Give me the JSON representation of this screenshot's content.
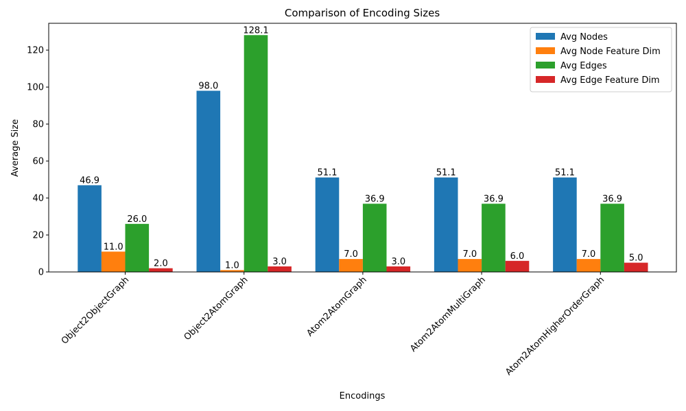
{
  "chart_data": {
    "type": "bar",
    "title": "Comparison of Encoding Sizes",
    "xlabel": "Encodings",
    "ylabel": "Average Size",
    "categories": [
      "Object2ObjectGraph",
      "Object2AtomGraph",
      "Atom2AtomGraph",
      "Atom2AtomMultiGraph",
      "Atom2AtomHigherOrderGraph"
    ],
    "series": [
      {
        "name": "Avg Nodes",
        "color": "#1f77b4",
        "values": [
          46.9,
          98.0,
          51.1,
          51.1,
          51.1
        ]
      },
      {
        "name": "Avg Node Feature Dim",
        "color": "#ff7f0e",
        "values": [
          11.0,
          1.0,
          7.0,
          7.0,
          7.0
        ]
      },
      {
        "name": "Avg Edges",
        "color": "#2ca02c",
        "values": [
          26.0,
          128.1,
          36.9,
          36.9,
          36.9
        ]
      },
      {
        "name": "Avg Edge Feature Dim",
        "color": "#d62728",
        "values": [
          2.0,
          3.0,
          3.0,
          6.0,
          5.0
        ]
      }
    ],
    "ylim": [
      0,
      134.5
    ],
    "yticks": [
      0,
      20,
      40,
      60,
      80,
      100,
      120
    ],
    "grid": false,
    "legend_position": "top-right",
    "xtick_rotation": 45
  }
}
